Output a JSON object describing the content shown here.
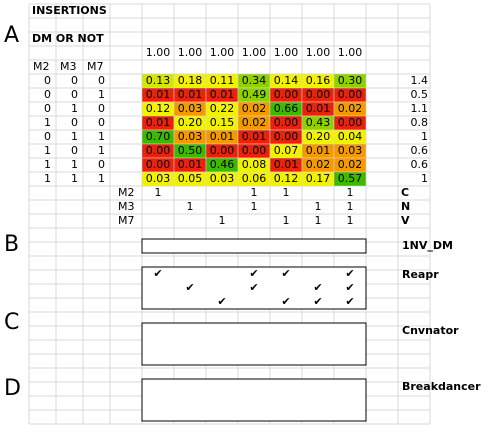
{
  "title": "INSERTIONS",
  "subtitle": "DM OR NOT",
  "panel_a": "A",
  "column_totals": [
    "1.00",
    "1.00",
    "1.00",
    "1.00",
    "1.00",
    "1.00",
    "1.00"
  ],
  "row_header": [
    "M2",
    "M3",
    "M7"
  ],
  "rows": [
    {
      "combo": [
        0,
        0,
        0
      ],
      "cells": [
        "0.13",
        "0.18",
        "0.11",
        "0.34",
        "0.14",
        "0.16",
        "0.30"
      ],
      "colors": [
        "#d2e600",
        "#f2f200",
        "#f2f200",
        "#8fd000",
        "#f2f200",
        "#f2f200",
        "#8fd000"
      ],
      "total": "1.4"
    },
    {
      "combo": [
        0,
        0,
        1
      ],
      "cells": [
        "0.01",
        "0.01",
        "0.01",
        "0.49",
        "0.00",
        "0.00",
        "0.00"
      ],
      "colors": [
        "#e8220c",
        "#e8220c",
        "#e8220c",
        "#8fd000",
        "#e8220c",
        "#e8220c",
        "#e8220c"
      ],
      "total": "0.5"
    },
    {
      "combo": [
        0,
        1,
        0
      ],
      "cells": [
        "0.12",
        "0.03",
        "0.22",
        "0.02",
        "0.66",
        "0.01",
        "0.02"
      ],
      "colors": [
        "#f2f200",
        "#f39a00",
        "#f2f200",
        "#f39a00",
        "#40b800",
        "#e8220c",
        "#f39a00"
      ],
      "total": "1.1"
    },
    {
      "combo": [
        1,
        0,
        0
      ],
      "cells": [
        "0.01",
        "0.20",
        "0.15",
        "0.02",
        "0.00",
        "0.43",
        "0.00"
      ],
      "colors": [
        "#e8220c",
        "#f2f200",
        "#f2f200",
        "#f39a00",
        "#e8220c",
        "#8fd000",
        "#e8220c"
      ],
      "total": "0.8"
    },
    {
      "combo": [
        0,
        1,
        1
      ],
      "cells": [
        "0.70",
        "0.03",
        "0.01",
        "0.01",
        "0.00",
        "0.20",
        "0.04"
      ],
      "colors": [
        "#40b800",
        "#f39a00",
        "#f39a00",
        "#e8220c",
        "#e8220c",
        "#f2f200",
        "#f2f200"
      ],
      "total": "1"
    },
    {
      "combo": [
        1,
        0,
        1
      ],
      "cells": [
        "0.00",
        "0.50",
        "0.00",
        "0.00",
        "0.07",
        "0.01",
        "0.03"
      ],
      "colors": [
        "#e8220c",
        "#40b800",
        "#e8220c",
        "#e8220c",
        "#f2f200",
        "#f39a00",
        "#f39a00"
      ],
      "total": "0.6"
    },
    {
      "combo": [
        1,
        1,
        0
      ],
      "cells": [
        "0.00",
        "0.01",
        "0.46",
        "0.08",
        "0.01",
        "0.02",
        "0.02"
      ],
      "colors": [
        "#e8220c",
        "#e8220c",
        "#40b800",
        "#f2f200",
        "#e8220c",
        "#f39a00",
        "#f39a00"
      ],
      "total": "0.6"
    },
    {
      "combo": [
        1,
        1,
        1
      ],
      "cells": [
        "0.03",
        "0.05",
        "0.03",
        "0.06",
        "0.12",
        "0.17",
        "0.57"
      ],
      "colors": [
        "#f2f200",
        "#f2f200",
        "#f2f200",
        "#f2f200",
        "#f2f200",
        "#f2f200",
        "#40b800"
      ],
      "total": "1"
    }
  ],
  "tool_rows": [
    {
      "name": "M2",
      "cells": [
        1,
        null,
        null,
        1,
        1,
        null,
        1
      ],
      "code": "C"
    },
    {
      "name": "M3",
      "cells": [
        null,
        1,
        null,
        1,
        null,
        1,
        1
      ],
      "code": "N"
    },
    {
      "name": "M7",
      "cells": [
        null,
        null,
        1,
        null,
        1,
        1,
        1
      ],
      "code": "V"
    }
  ],
  "sections": [
    {
      "letter": "B",
      "tools": [
        {
          "name": "1NV_DM",
          "rows": []
        },
        {
          "name": "Reapr",
          "rows": [
            [
              "✔",
              null,
              null,
              "✔",
              "✔",
              null,
              "✔"
            ],
            [
              null,
              "✔",
              null,
              "✔",
              null,
              "✔",
              "✔"
            ],
            [
              null,
              null,
              "✔",
              null,
              "✔",
              "✔",
              "✔"
            ]
          ]
        }
      ]
    },
    {
      "letter": "C",
      "tools": [
        {
          "name": "Cnvnator",
          "rows": []
        }
      ]
    },
    {
      "letter": "D",
      "tools": [
        {
          "name": "Breakdancer",
          "rows": []
        }
      ]
    }
  ]
}
